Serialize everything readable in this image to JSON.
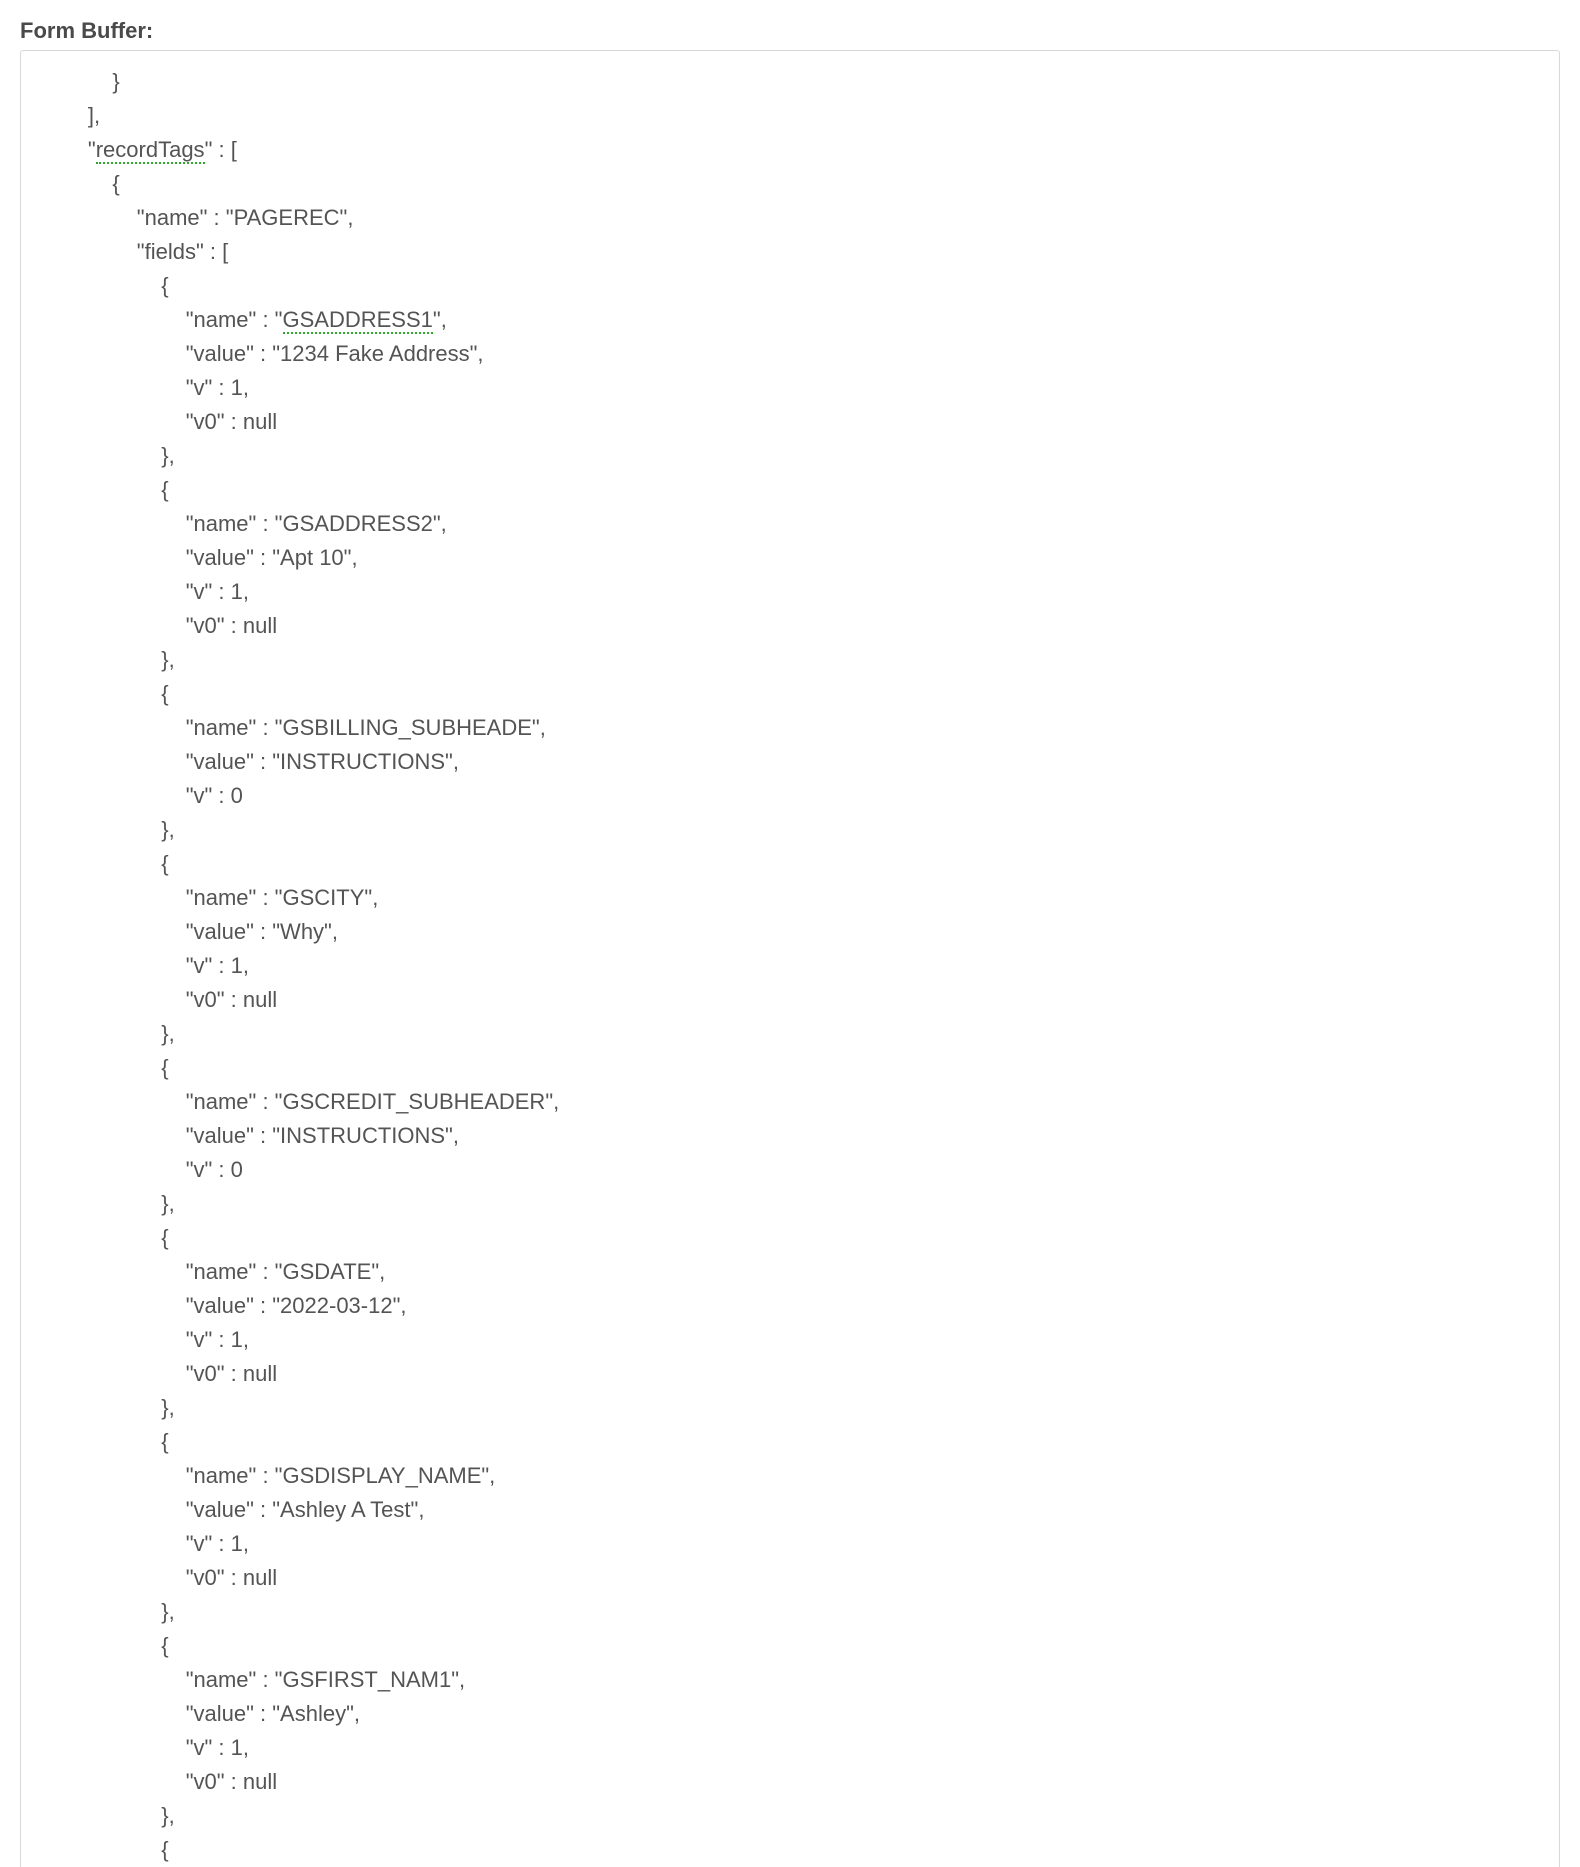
{
  "heading": "Form Buffer:",
  "textColor": "#545454",
  "headingColor": "#4a4a4a",
  "borderColor": "#d8d8d8",
  "underlineColor": "#2aa82a",
  "background": "#ffffff",
  "font": "Arial, Helvetica, sans-serif",
  "fontSizePx": 22,
  "lineHeightPx": 34,
  "indentUnit": "    ",
  "underlinedTokens": [
    "recordTags",
    "GSADDRESS1"
  ],
  "codeLines": [
    {
      "indent": 3,
      "text": "}"
    },
    {
      "indent": 2,
      "text": "],"
    },
    {
      "indent": 2,
      "text": "\"",
      "ulText": "recordTags",
      "suffix": "\" : ["
    },
    {
      "indent": 3,
      "text": "{"
    },
    {
      "indent": 4,
      "text": "\"name\" : \"PAGEREC\","
    },
    {
      "indent": 4,
      "text": "\"fields\" : ["
    },
    {
      "indent": 5,
      "text": "{"
    },
    {
      "indent": 6,
      "text": "\"name\" : \"",
      "ulText": "GSADDRESS1",
      "suffix": "\","
    },
    {
      "indent": 6,
      "text": "\"value\" : \"1234 Fake Address\","
    },
    {
      "indent": 6,
      "text": "\"v\" : 1,"
    },
    {
      "indent": 6,
      "text": "\"v0\" : null"
    },
    {
      "indent": 5,
      "text": "},"
    },
    {
      "indent": 5,
      "text": "{"
    },
    {
      "indent": 6,
      "text": "\"name\" : \"GSADDRESS2\","
    },
    {
      "indent": 6,
      "text": "\"value\" : \"Apt 10\","
    },
    {
      "indent": 6,
      "text": "\"v\" : 1,"
    },
    {
      "indent": 6,
      "text": "\"v0\" : null"
    },
    {
      "indent": 5,
      "text": "},"
    },
    {
      "indent": 5,
      "text": "{"
    },
    {
      "indent": 6,
      "text": "\"name\" : \"GSBILLING_SUBHEADE\","
    },
    {
      "indent": 6,
      "text": "\"value\" : \"INSTRUCTIONS\","
    },
    {
      "indent": 6,
      "text": "\"v\" : 0"
    },
    {
      "indent": 5,
      "text": "},"
    },
    {
      "indent": 5,
      "text": "{"
    },
    {
      "indent": 6,
      "text": "\"name\" : \"GSCITY\","
    },
    {
      "indent": 6,
      "text": "\"value\" : \"Why\","
    },
    {
      "indent": 6,
      "text": "\"v\" : 1,"
    },
    {
      "indent": 6,
      "text": "\"v0\" : null"
    },
    {
      "indent": 5,
      "text": "},"
    },
    {
      "indent": 5,
      "text": "{"
    },
    {
      "indent": 6,
      "text": "\"name\" : \"GSCREDIT_SUBHEADER\","
    },
    {
      "indent": 6,
      "text": "\"value\" : \"INSTRUCTIONS\","
    },
    {
      "indent": 6,
      "text": "\"v\" : 0"
    },
    {
      "indent": 5,
      "text": "},"
    },
    {
      "indent": 5,
      "text": "{"
    },
    {
      "indent": 6,
      "text": "\"name\" : \"GSDATE\","
    },
    {
      "indent": 6,
      "text": "\"value\" : \"2022-03-12\","
    },
    {
      "indent": 6,
      "text": "\"v\" : 1,"
    },
    {
      "indent": 6,
      "text": "\"v0\" : null"
    },
    {
      "indent": 5,
      "text": "},"
    },
    {
      "indent": 5,
      "text": "{"
    },
    {
      "indent": 6,
      "text": "\"name\" : \"GSDISPLAY_NAME\","
    },
    {
      "indent": 6,
      "text": "\"value\" : \"Ashley A Test\","
    },
    {
      "indent": 6,
      "text": "\"v\" : 1,"
    },
    {
      "indent": 6,
      "text": "\"v0\" : null"
    },
    {
      "indent": 5,
      "text": "},"
    },
    {
      "indent": 5,
      "text": "{"
    },
    {
      "indent": 6,
      "text": "\"name\" : \"GSFIRST_NAM1\","
    },
    {
      "indent": 6,
      "text": "\"value\" : \"Ashley\","
    },
    {
      "indent": 6,
      "text": "\"v\" : 1,"
    },
    {
      "indent": 6,
      "text": "\"v0\" : null"
    },
    {
      "indent": 5,
      "text": "},"
    },
    {
      "indent": 5,
      "text": "{"
    }
  ]
}
